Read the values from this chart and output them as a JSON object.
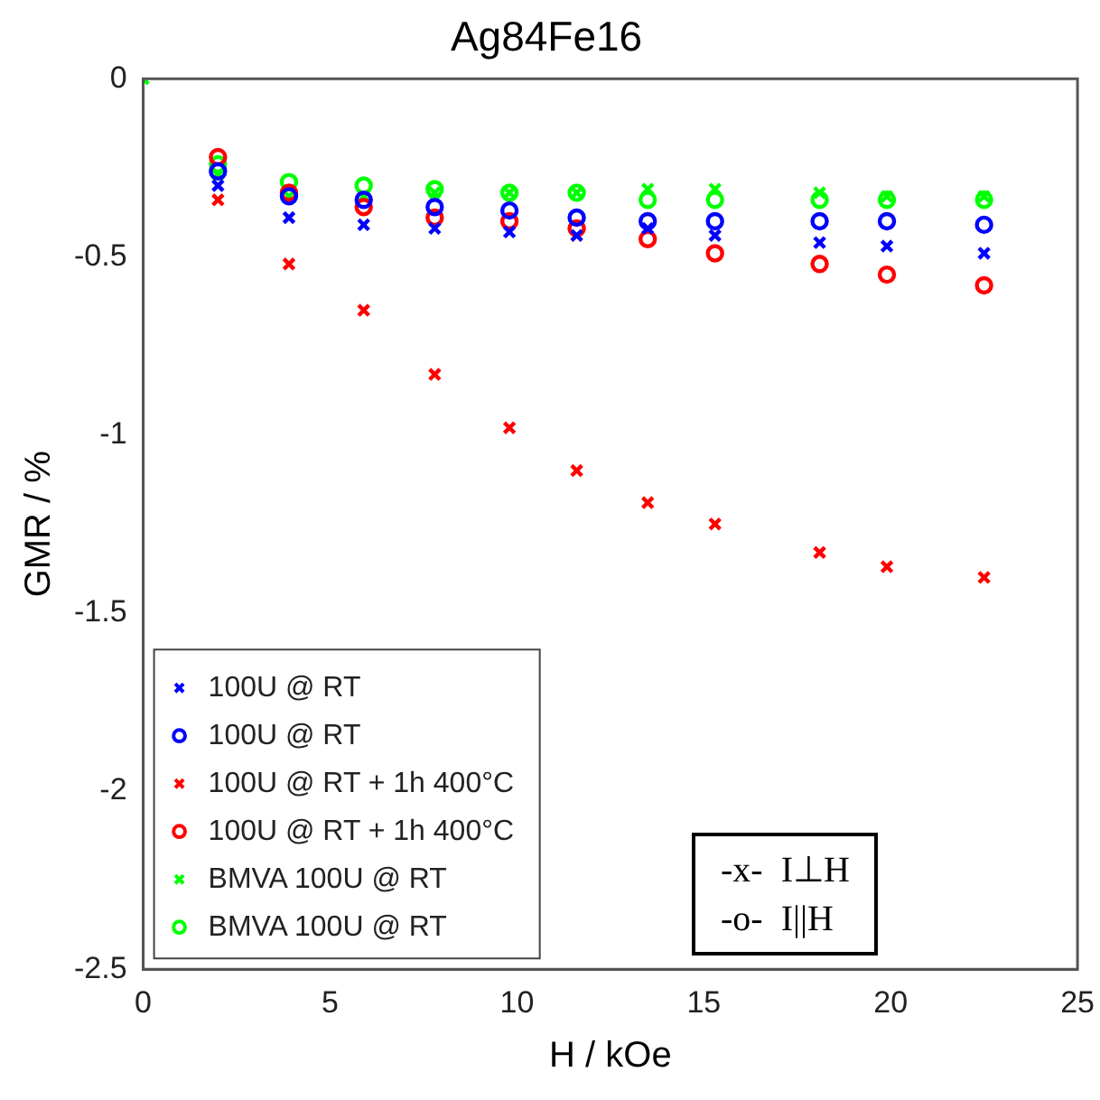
{
  "chart_data": {
    "type": "scatter",
    "title": "Ag84Fe16",
    "xlabel": "H / kOe",
    "ylabel": "GMR / %",
    "x": [
      2,
      3.9,
      5.9,
      7.8,
      9.8,
      11.6,
      13.5,
      15.3,
      18.1,
      19.9,
      22.5
    ],
    "xlim": [
      0,
      25
    ],
    "xticks": [
      0,
      5,
      10,
      15,
      20,
      25
    ],
    "ylim": [
      -2.5,
      0
    ],
    "yticks": [
      -2.5,
      -2,
      -1.5,
      -1,
      -0.5,
      0
    ],
    "grid": false,
    "legend": "bottom left",
    "series": [
      {
        "name": "100U @ RT",
        "color": "#0000ff",
        "marker": "cross",
        "values": [
          -0.3,
          -0.39,
          -0.41,
          -0.42,
          -0.43,
          -0.44,
          -0.42,
          -0.44,
          -0.46,
          -0.47,
          -0.49
        ]
      },
      {
        "name": "100U @ RT",
        "color": "#0000ff",
        "marker": "circle",
        "values": [
          -0.26,
          -0.33,
          -0.34,
          -0.36,
          -0.37,
          -0.39,
          -0.4,
          -0.4,
          -0.4,
          -0.4,
          -0.41
        ]
      },
      {
        "name": "100U @ RT + 1h 400°C",
        "color": "#ff0000",
        "marker": "cross",
        "values": [
          -0.34,
          -0.52,
          -0.65,
          -0.83,
          -0.98,
          -1.1,
          -1.19,
          -1.25,
          -1.33,
          -1.37,
          -1.4
        ]
      },
      {
        "name": "100U @ RT + 1h 400°C",
        "color": "#ff0000",
        "marker": "circle",
        "values": [
          -0.22,
          -0.32,
          -0.36,
          -0.39,
          -0.4,
          -0.42,
          -0.45,
          -0.49,
          -0.52,
          -0.55,
          -0.58
        ]
      },
      {
        "name": "BMVA 100U @ RT",
        "color": "#00ff00",
        "marker": "cross",
        "x": [
          0,
          2,
          3.9,
          5.9,
          7.8,
          9.8,
          11.6,
          13.5,
          15.3,
          18.1,
          19.9,
          22.5
        ],
        "values": [
          0,
          -0.27,
          -0.33,
          -0.33,
          -0.32,
          -0.32,
          -0.32,
          -0.31,
          -0.31,
          -0.32,
          -0.33,
          -0.33
        ]
      },
      {
        "name": "BMVA 100U @ RT",
        "color": "#00ff00",
        "marker": "circle",
        "values": [
          -0.24,
          -0.29,
          -0.3,
          -0.31,
          -0.32,
          -0.32,
          -0.34,
          -0.34,
          -0.34,
          -0.34,
          -0.34
        ]
      }
    ],
    "annotations": [
      "-x-  I⊥H",
      "-o-  I||H"
    ]
  }
}
